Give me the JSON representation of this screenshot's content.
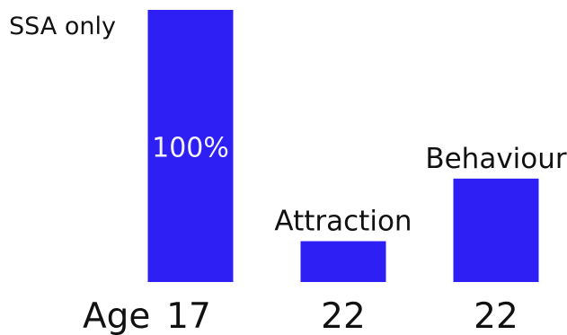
{
  "chart_data": {
    "type": "bar",
    "title": "SSA only",
    "x_prefix": "Age",
    "categories": [
      "17",
      "22",
      "22"
    ],
    "values": [
      100,
      15,
      38
    ],
    "bar_labels": [
      "100%",
      "Attraction",
      "Behaviour"
    ],
    "ylim": [
      0,
      100
    ],
    "grid": false,
    "colors": {
      "bar": "#2e1ff5",
      "text": "#111111",
      "inside_label": "#f3f3ff"
    }
  }
}
